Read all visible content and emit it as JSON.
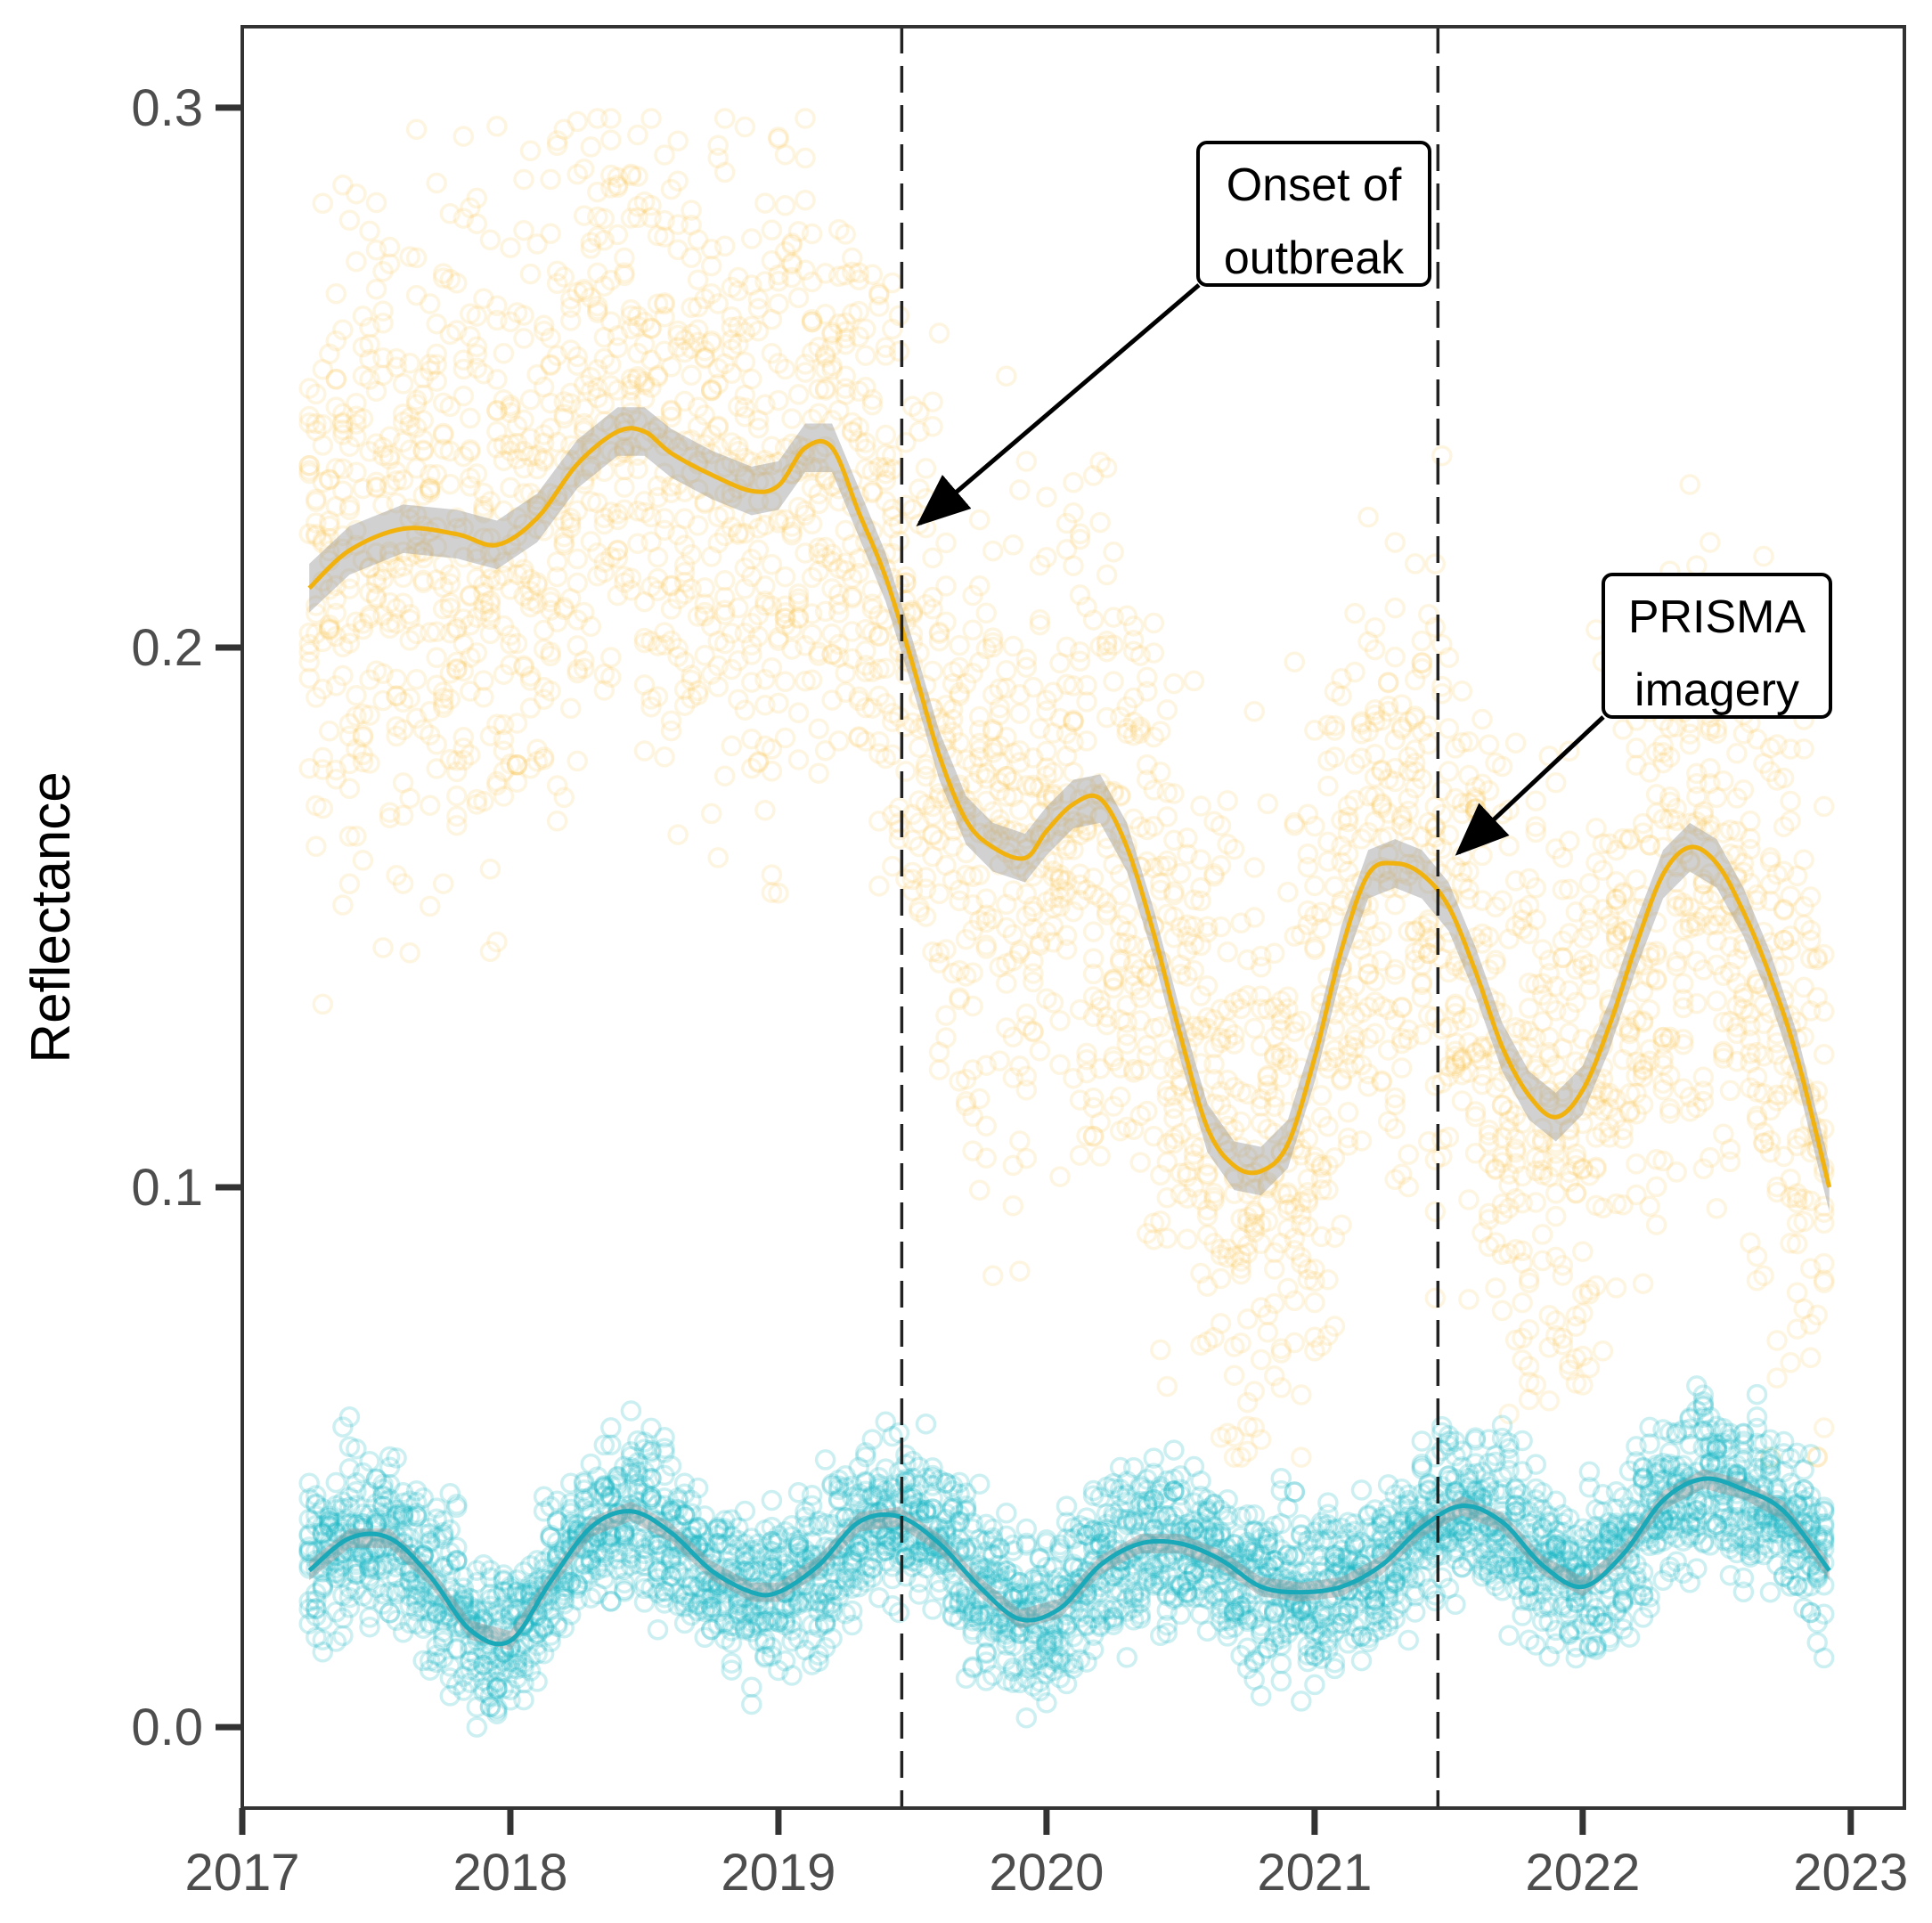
{
  "chart_data": {
    "type": "scatter",
    "title": "",
    "xlabel": "",
    "ylabel": "Reflectance",
    "xlim": [
      2017.0,
      2023.2
    ],
    "ylim": [
      -0.015,
      0.315
    ],
    "x_ticks": [
      {
        "value": 2017,
        "label": "2017"
      },
      {
        "value": 2018,
        "label": "2018"
      },
      {
        "value": 2019,
        "label": "2019"
      },
      {
        "value": 2020,
        "label": "2020"
      },
      {
        "value": 2021,
        "label": "2021"
      },
      {
        "value": 2022,
        "label": "2022"
      },
      {
        "value": 2023,
        "label": "2023"
      }
    ],
    "y_ticks": [
      {
        "value": 0.0,
        "label": "0.0"
      },
      {
        "value": 0.1,
        "label": "0.1"
      },
      {
        "value": 0.2,
        "label": "0.2"
      },
      {
        "value": 0.3,
        "label": "0.3"
      }
    ],
    "vlines": [
      2019.46,
      2021.46
    ],
    "annotations": [
      {
        "name": "onset",
        "lines": [
          "Onset of",
          "outbreak"
        ],
        "target_x": 2019.46,
        "target_y": 0.221
      },
      {
        "name": "prisma",
        "lines": [
          "PRISMA",
          "imagery"
        ],
        "target_x": 2021.47,
        "target_y": 0.16
      }
    ],
    "series": [
      {
        "name": "orange-band",
        "color": "#f2b20e",
        "point_color": "#fbbf45",
        "x": [
          2017.25,
          2017.4,
          2017.6,
          2017.8,
          2017.95,
          2018.1,
          2018.25,
          2018.4,
          2018.5,
          2018.6,
          2018.75,
          2018.9,
          2019.0,
          2019.1,
          2019.2,
          2019.3,
          2019.4,
          2019.5,
          2019.6,
          2019.7,
          2019.8,
          2019.92,
          2020.0,
          2020.1,
          2020.2,
          2020.3,
          2020.4,
          2020.5,
          2020.6,
          2020.7,
          2020.8,
          2020.9,
          2021.0,
          2021.1,
          2021.2,
          2021.3,
          2021.4,
          2021.5,
          2021.6,
          2021.7,
          2021.8,
          2021.9,
          2022.0,
          2022.1,
          2022.2,
          2022.3,
          2022.4,
          2022.5,
          2022.6,
          2022.7,
          2022.8,
          2022.92
        ],
        "values": [
          0.211,
          0.218,
          0.222,
          0.221,
          0.219,
          0.224,
          0.234,
          0.24,
          0.24,
          0.236,
          0.232,
          0.229,
          0.23,
          0.237,
          0.237,
          0.225,
          0.213,
          0.197,
          0.18,
          0.168,
          0.163,
          0.161,
          0.166,
          0.171,
          0.172,
          0.163,
          0.147,
          0.128,
          0.111,
          0.104,
          0.103,
          0.108,
          0.124,
          0.144,
          0.158,
          0.16,
          0.158,
          0.152,
          0.14,
          0.126,
          0.117,
          0.113,
          0.118,
          0.13,
          0.145,
          0.158,
          0.163,
          0.16,
          0.151,
          0.139,
          0.124,
          0.1
        ]
      },
      {
        "name": "teal-band",
        "color": "#1aa9b8",
        "point_color": "#19b4c6",
        "x": [
          2017.25,
          2017.4,
          2017.55,
          2017.7,
          2017.85,
          2018.0,
          2018.15,
          2018.3,
          2018.45,
          2018.6,
          2018.75,
          2018.9,
          2019.0,
          2019.15,
          2019.3,
          2019.45,
          2019.6,
          2019.75,
          2019.9,
          2020.05,
          2020.2,
          2020.35,
          2020.5,
          2020.65,
          2020.8,
          2020.95,
          2021.1,
          2021.25,
          2021.4,
          2021.55,
          2021.7,
          2021.85,
          2022.0,
          2022.15,
          2022.3,
          2022.45,
          2022.6,
          2022.75,
          2022.92
        ],
        "values": [
          0.029,
          0.035,
          0.035,
          0.028,
          0.018,
          0.016,
          0.027,
          0.037,
          0.04,
          0.036,
          0.029,
          0.025,
          0.025,
          0.03,
          0.038,
          0.039,
          0.034,
          0.026,
          0.02,
          0.022,
          0.03,
          0.034,
          0.034,
          0.031,
          0.026,
          0.025,
          0.026,
          0.03,
          0.037,
          0.041,
          0.038,
          0.03,
          0.026,
          0.032,
          0.042,
          0.046,
          0.044,
          0.04,
          0.029
        ]
      }
    ]
  }
}
